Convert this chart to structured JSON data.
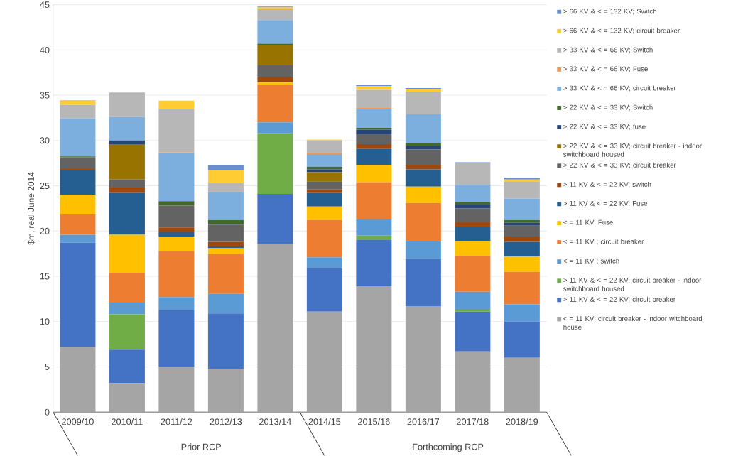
{
  "chart_data": {
    "type": "bar",
    "stacked": true,
    "ylabel": "$m, real June 2014",
    "categories": [
      "2009/10",
      "2010/11",
      "2011/12",
      "2012/13",
      "2013/14",
      "2014/15",
      "2015/16",
      "2016/17",
      "2017/18",
      "2018/19"
    ],
    "annotations": [
      "Prior RCP",
      "Forthcoming RCP"
    ],
    "ylim": [
      0,
      45
    ],
    "yticks": [
      0,
      5,
      10,
      15,
      20,
      25,
      30,
      35,
      40,
      45
    ],
    "grid": "y",
    "legend": "right",
    "series": [
      {
        "name": "< = 11 KV; circuit breaker - indoor witchboard house",
        "color": "#a5a5a5",
        "values": [
          7.2,
          3.2,
          5.0,
          4.8,
          18.6,
          11.1,
          13.9,
          11.7,
          6.7,
          6.0
        ]
      },
      {
        "name": "> 11 KV & < = 22 KV; circuit breaker",
        "color": "#4472c4",
        "values": [
          11.5,
          3.7,
          6.3,
          6.1,
          5.5,
          4.8,
          5.1,
          5.2,
          4.4,
          4.0
        ]
      },
      {
        "name": "> 11 KV & < = 22 KV; circuit breaker - indoor switchboard housed",
        "color": "#70ad47",
        "values": [
          0,
          3.9,
          0,
          0,
          6.7,
          0,
          0.5,
          0,
          0.3,
          0
        ]
      },
      {
        "name": "< = 11 KV ; switch",
        "color": "#5b9bd5",
        "values": [
          0.9,
          1.3,
          1.4,
          2.2,
          1.2,
          1.2,
          1.8,
          2.0,
          1.9,
          1.9
        ]
      },
      {
        "name": "< = 11 KV ; circuit breaker",
        "color": "#ed7d31",
        "values": [
          2.3,
          3.3,
          5.1,
          4.4,
          4.1,
          4.1,
          4.1,
          4.2,
          4.0,
          3.6
        ]
      },
      {
        "name": "< = 11 KV; Fuse",
        "color": "#ffc000",
        "values": [
          2.1,
          4.2,
          1.6,
          0.6,
          0.3,
          1.5,
          1.9,
          1.8,
          1.6,
          1.7
        ]
      },
      {
        "name": "> 11 KV & < = 22 KV; Fuse",
        "color": "#255e91",
        "values": [
          2.7,
          4.6,
          0.5,
          0.2,
          0.1,
          1.5,
          1.8,
          1.9,
          1.6,
          1.6
        ]
      },
      {
        "name": "> 11 KV & < = 22 KV; switch",
        "color": "#9e480e",
        "values": [
          0.15,
          0.6,
          0.5,
          0.5,
          0.5,
          0.4,
          0.5,
          0.5,
          0.5,
          0.6
        ]
      },
      {
        "name": "> 22 KV & < = 33 KV; circuit breaker",
        "color": "#636363",
        "values": [
          1.3,
          0.9,
          2.4,
          1.9,
          1.3,
          0.9,
          1.1,
          1.7,
          1.5,
          1.2
        ]
      },
      {
        "name": "> 22 KV & < = 33 KV; circuit breaker - indoor switchboard housed",
        "color": "#997300",
        "values": [
          0,
          3.9,
          0,
          0,
          2.2,
          1.0,
          0,
          0,
          0,
          0
        ]
      },
      {
        "name": "> 22 KV & < = 33 KV; fuse",
        "color": "#264478",
        "values": [
          0,
          0.4,
          0,
          0.1,
          0,
          0.3,
          0.5,
          0.4,
          0.4,
          0.3
        ]
      },
      {
        "name": "> 22 KV & < = 33 KV; Switch",
        "color": "#43682b",
        "values": [
          0.1,
          0,
          0.5,
          0.4,
          0.2,
          0.3,
          0.2,
          0.3,
          0.3,
          0.3
        ]
      },
      {
        "name": "> 33 KV & < = 66 KV; circuit breaker",
        "color": "#7cafdd",
        "values": [
          4.2,
          2.6,
          5.3,
          3.1,
          2.6,
          1.4,
          2.1,
          3.2,
          1.9,
          2.4
        ]
      },
      {
        "name": "> 33 KV & < = 66 KV; Fuse",
        "color": "#f1975a",
        "values": [
          0,
          0,
          0.1,
          0,
          0,
          0.1,
          0.1,
          0,
          0,
          0
        ]
      },
      {
        "name": "> 33 KV & < = 66 KV; Switch",
        "color": "#b7b7b7",
        "values": [
          1.5,
          2.7,
          4.8,
          1.0,
          1.2,
          1.4,
          2.0,
          2.5,
          2.4,
          1.9
        ]
      },
      {
        "name": "> 66 KV & < = 132 KV; circuit breaker",
        "color": "#ffcd33",
        "values": [
          0.5,
          0,
          0.9,
          1.4,
          0.2,
          0.1,
          0.4,
          0.3,
          0,
          0.2
        ]
      },
      {
        "name": "> 66 KV & < = 132 KV; Switch",
        "color": "#698ed0",
        "values": [
          0,
          0,
          0,
          0.6,
          0.1,
          0,
          0.1,
          0.1,
          0.1,
          0.2
        ]
      }
    ]
  }
}
